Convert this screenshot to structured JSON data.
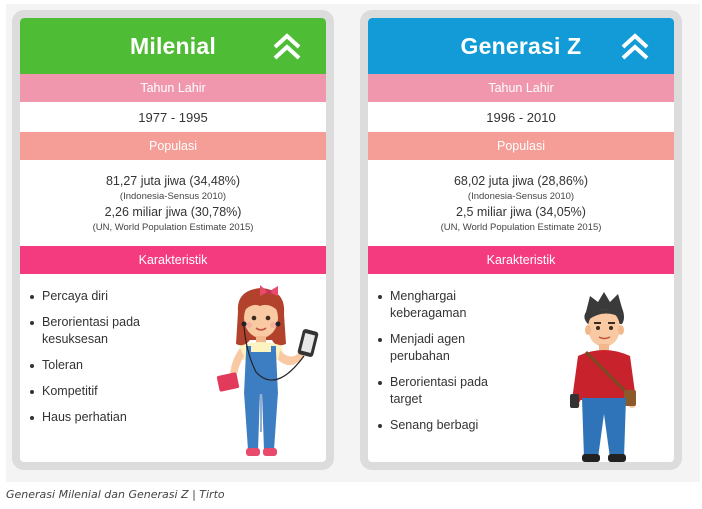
{
  "cards": [
    {
      "title": "Milenial",
      "birth_label": "Tahun Lahir",
      "birth_range": "1977 - 1995",
      "pop_label": "Populasi",
      "pop_indonesia": "81,27 juta jiwa (34,48%)",
      "pop_indonesia_src": "(Indonesia-Sensus 2010)",
      "pop_world": "2,26 miliar jiwa (30,78%)",
      "pop_world_src": "(UN, World Population Estimate 2015)",
      "traits_label": "Karakteristik",
      "traits": [
        "Percaya diri",
        "Berorientasi pada kesuksesan",
        "Toleran",
        "Kompetitif",
        "Haus perhatian"
      ]
    },
    {
      "title": "Generasi Z",
      "birth_label": "Tahun Lahir",
      "birth_range": "1996 - 2010",
      "pop_label": "Populasi",
      "pop_indonesia": "68,02 juta jiwa (28,86%)",
      "pop_indonesia_src": "(Indonesia-Sensus 2010)",
      "pop_world": "2,5 miliar jiwa (34,05%)",
      "pop_world_src": "(UN, World Population Estimate 2015)",
      "traits_label": "Karakteristik",
      "traits": [
        "Menghargai keberagaman",
        "Menjadi agen perubahan",
        "Berorientasi pada target",
        "Senang berbagi"
      ]
    }
  ],
  "colors": {
    "milenial_header": "#4fbc35",
    "genz_header": "#129bd7",
    "birth_band": "#f197ad",
    "pop_band": "#f59e97",
    "traits_band": "#f43b7f"
  },
  "icons": [
    "double-chevron-up-icon",
    "girl-illustration",
    "boy-illustration"
  ],
  "caption": "Generasi Milenial dan Generasi Z | Tirto"
}
